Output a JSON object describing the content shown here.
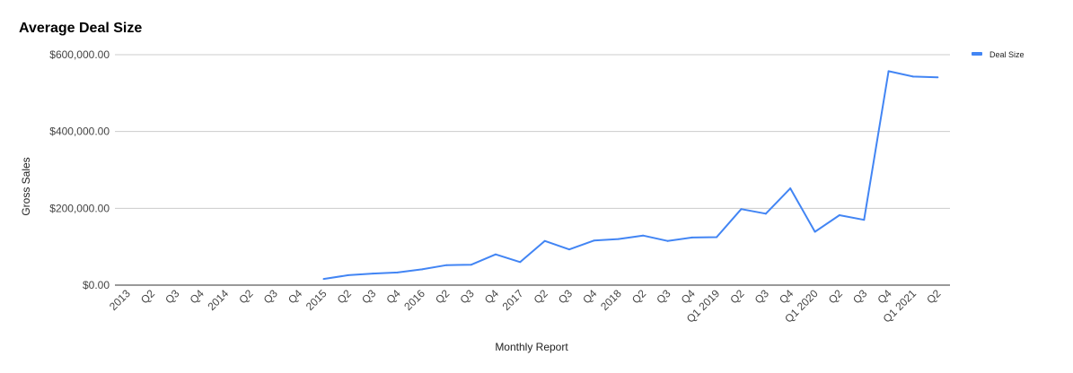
{
  "chart_data": {
    "type": "line",
    "title": "Average Deal Size",
    "xlabel": "Monthly Report",
    "ylabel": "Gross Sales",
    "ylim": [
      0,
      600000
    ],
    "yticks": [
      0,
      200000,
      400000,
      600000
    ],
    "ytick_labels": [
      "$0.00",
      "$200,000.00",
      "$400,000.00",
      "$600,000.00"
    ],
    "grid": true,
    "legend_position": "right",
    "categories": [
      "2013",
      "Q2",
      "Q3",
      "Q4",
      "2014",
      "Q2",
      "Q3",
      "Q4",
      "2015",
      "Q2",
      "Q3",
      "Q4",
      "2016",
      "Q2",
      "Q3",
      "Q4",
      "2017",
      "Q2",
      "Q3",
      "Q4",
      "2018",
      "Q2",
      "Q3",
      "Q4",
      "Q1 2019",
      "Q2",
      "Q3",
      "Q4",
      "Q1 2020",
      "Q2",
      "Q3",
      "Q4",
      "Q1 2021",
      "Q2"
    ],
    "series": [
      {
        "name": "Deal Size",
        "color": "#4285f4",
        "values": [
          null,
          null,
          null,
          null,
          null,
          null,
          null,
          null,
          16000,
          26000,
          30000,
          33000,
          41000,
          52000,
          53000,
          80000,
          60000,
          115000,
          93000,
          116000,
          120000,
          129000,
          115000,
          124000,
          125000,
          198000,
          186000,
          252000,
          139000,
          182000,
          170000,
          557000,
          543000,
          541000
        ]
      }
    ]
  }
}
